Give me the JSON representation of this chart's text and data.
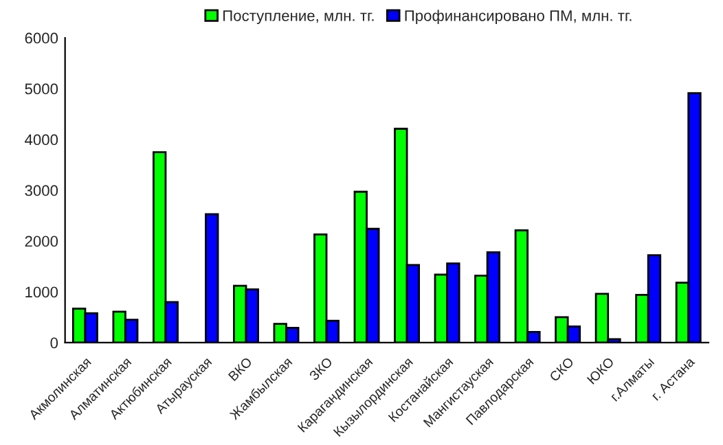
{
  "chart_data": {
    "type": "bar",
    "categories": [
      "Акмолинская",
      "Алматинская",
      "Актюбинская",
      "Атырауская",
      "ВКО",
      "Жамбылская",
      "ЗКО",
      "Карагандинская",
      "Кызылординская",
      "Костанайская",
      "Мангистауская",
      "Павлодарская",
      "СКО",
      "ЮКО",
      "г.Алматы",
      "г. Астана"
    ],
    "series": [
      {
        "name": "Поступление, млн. тг.",
        "color": "#00ff00",
        "values": [
          670,
          610,
          3750,
          null,
          1120,
          370,
          2130,
          2970,
          4210,
          1340,
          1320,
          2210,
          500,
          960,
          940,
          1180
        ]
      },
      {
        "name": "Профинансировано ПМ, млн. тг.",
        "color": "#0000ff",
        "values": [
          580,
          450,
          800,
          2530,
          1050,
          290,
          430,
          2240,
          1530,
          1560,
          1780,
          210,
          320,
          70,
          1720,
          4910
        ]
      }
    ],
    "ylim": [
      0,
      6000
    ],
    "yticks": [
      0,
      1000,
      2000,
      3000,
      4000,
      5000,
      6000
    ],
    "grid": false,
    "legend": "top"
  }
}
